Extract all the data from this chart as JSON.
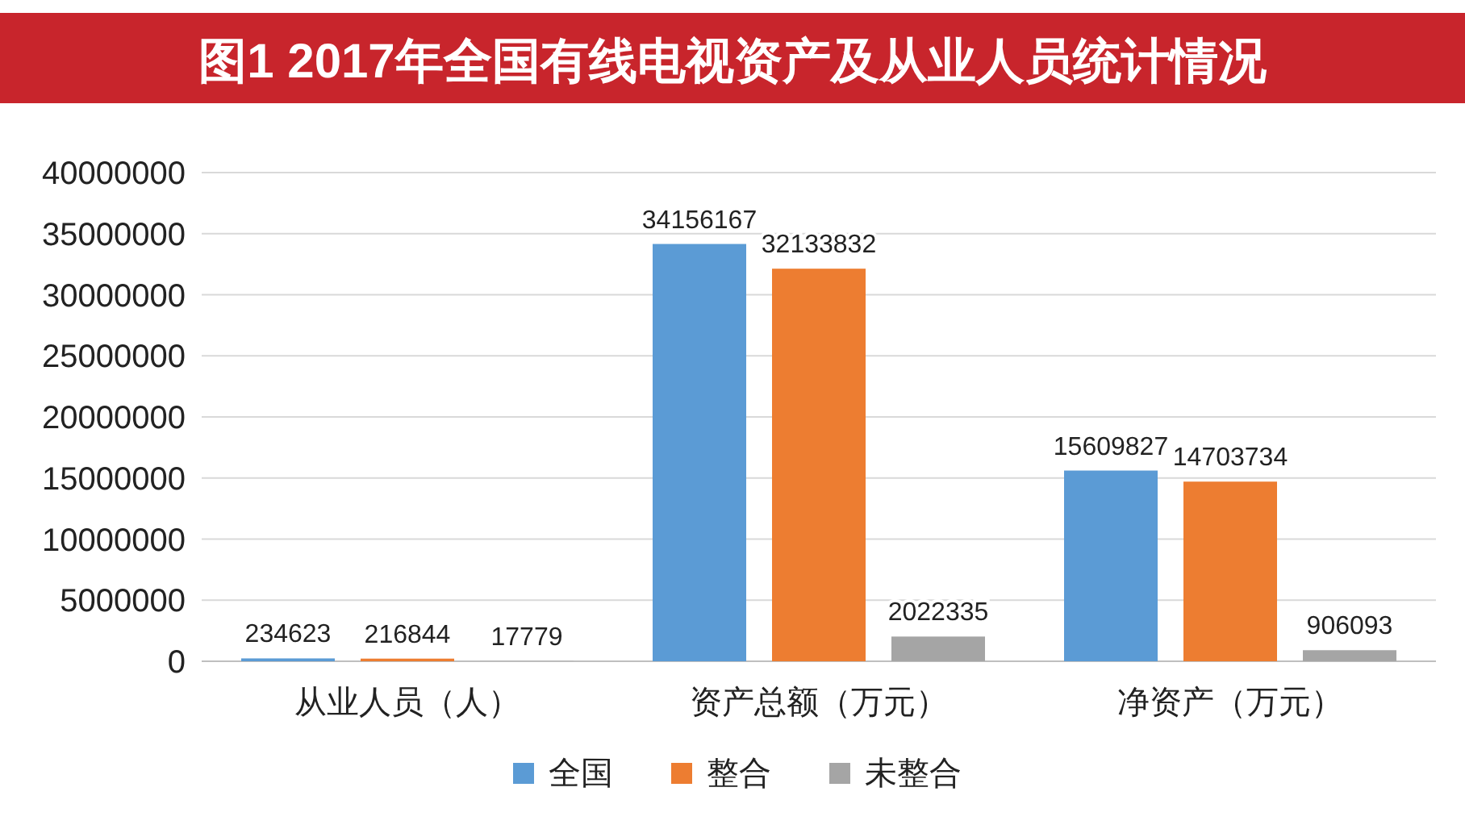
{
  "chart_data": {
    "type": "bar",
    "title": "图1  2017年全国有线电视资产及从业人员统计情况",
    "categories": [
      "从业人员（人）",
      "资产总额（万元）",
      "净资产（万元）"
    ],
    "series": [
      {
        "name": "全国",
        "color": "#5b9bd5",
        "values": [
          234623,
          34156167,
          15609827
        ]
      },
      {
        "name": "整合",
        "color": "#ed7d31",
        "values": [
          216844,
          32133832,
          14703734
        ]
      },
      {
        "name": "未整合",
        "color": "#a5a5a5",
        "values": [
          17779,
          2022335,
          906093
        ]
      }
    ],
    "ylim": [
      0,
      40000000
    ],
    "yticks": [
      0,
      5000000,
      10000000,
      15000000,
      20000000,
      25000000,
      30000000,
      35000000,
      40000000
    ],
    "grid": "y",
    "legend": "bottom",
    "data_labels": true
  }
}
